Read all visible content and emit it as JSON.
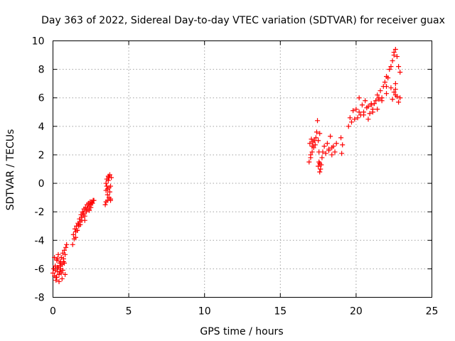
{
  "chart_data": {
    "type": "scatter",
    "title": "Day 363 of 2022, Sidereal Day-to-day VTEC variation (SDTVAR) for receiver guax",
    "xlabel": "GPS time / hours",
    "ylabel": "SDTVAR / TECUs",
    "xlim": [
      0,
      25
    ],
    "ylim": [
      -8,
      10
    ],
    "xticks": [
      "0",
      "5",
      "10",
      "15",
      "20",
      "25"
    ],
    "yticks": [
      "-8",
      "-6",
      "-4",
      "-2",
      "0",
      "2",
      "4",
      "6",
      "8",
      "10"
    ],
    "grid": true,
    "marker": "+",
    "color": "#ff0000",
    "series": [
      {
        "name": "guax",
        "x": [
          0.0,
          0.05,
          0.1,
          0.15,
          0.2,
          0.25,
          0.3,
          0.35,
          0.4,
          0.45,
          0.5,
          0.55,
          0.6,
          0.65,
          0.7,
          0.75,
          0.8,
          0.85,
          0.9,
          0.1,
          0.2,
          0.3,
          0.4,
          0.5,
          0.6,
          0.7,
          0.8,
          0.15,
          0.35,
          0.55,
          0.75,
          0.25,
          0.45,
          0.65,
          0.3,
          0.5,
          1.3,
          1.35,
          1.4,
          1.45,
          1.5,
          1.55,
          1.6,
          1.65,
          1.7,
          1.75,
          1.8,
          1.85,
          1.9,
          1.95,
          2.0,
          2.05,
          2.1,
          2.15,
          2.2,
          2.25,
          2.3,
          2.35,
          2.4,
          2.45,
          2.5,
          2.55,
          2.6,
          2.65,
          2.7,
          1.5,
          1.6,
          1.7,
          1.8,
          1.9,
          2.0,
          2.1,
          2.2,
          2.3,
          2.4,
          2.5,
          3.45,
          3.5,
          3.55,
          3.6,
          3.65,
          3.7,
          3.75,
          3.8,
          3.85,
          3.5,
          3.6,
          3.7,
          3.8,
          3.55,
          3.65,
          3.75,
          3.5,
          3.6,
          3.7,
          3.8,
          16.9,
          16.95,
          17.0,
          17.05,
          17.1,
          17.15,
          17.2,
          17.25,
          17.3,
          17.35,
          17.4,
          17.45,
          17.5,
          17.55,
          17.6,
          17.65,
          17.7,
          17.75,
          17.8,
          17.9,
          18.0,
          18.1,
          18.2,
          18.3,
          18.4,
          18.5,
          18.6,
          18.7,
          19.0,
          19.05,
          19.1,
          17.5,
          17.55,
          17.6,
          17.6,
          17.0,
          17.1,
          18.2,
          18.4,
          19.5,
          19.6,
          19.7,
          19.8,
          19.9,
          20.0,
          20.1,
          20.2,
          20.3,
          20.4,
          20.5,
          20.6,
          20.7,
          20.8,
          20.9,
          21.0,
          21.1,
          21.2,
          21.3,
          21.4,
          21.5,
          21.6,
          21.7,
          21.8,
          21.9,
          22.0,
          22.1,
          22.2,
          22.3,
          22.4,
          22.5,
          22.6,
          22.7,
          22.8,
          22.9,
          20.2,
          20.5,
          20.8,
          21.1,
          21.4,
          21.7,
          22.0,
          22.3,
          22.6,
          22.9,
          21.0,
          21.5,
          22.0,
          22.4,
          22.5,
          22.6,
          22.7,
          22.8,
          22.5,
          22.6
        ],
        "y": [
          -6.3,
          -6.0,
          -6.5,
          -5.8,
          -6.6,
          -5.4,
          -6.2,
          -5.0,
          -6.4,
          -5.6,
          -6.0,
          -5.2,
          -5.7,
          -4.9,
          -5.5,
          -4.7,
          -5.0,
          -4.5,
          -4.3,
          -5.2,
          -6.8,
          -5.9,
          -6.9,
          -5.5,
          -6.7,
          -5.3,
          -6.4,
          -6.1,
          -5.9,
          -6.3,
          -5.6,
          -6.6,
          -6.2,
          -6.1,
          -5.3,
          -5.8,
          -4.3,
          -3.6,
          -3.9,
          -3.2,
          -3.4,
          -3.0,
          -3.3,
          -2.8,
          -2.9,
          -2.5,
          -2.7,
          -2.2,
          -2.4,
          -2.0,
          -2.1,
          -1.8,
          -2.3,
          -1.7,
          -1.9,
          -1.5,
          -1.8,
          -1.4,
          -1.6,
          -1.3,
          -1.5,
          -1.3,
          -1.4,
          -1.2,
          -1.2,
          -3.8,
          -3.3,
          -3.0,
          -2.9,
          -2.6,
          -2.2,
          -2.6,
          -2.0,
          -1.8,
          -1.9,
          -1.7,
          -1.5,
          -0.5,
          0.3,
          -1.2,
          0.5,
          -0.3,
          0.6,
          -1.1,
          0.4,
          -1.3,
          -0.8,
          -1.0,
          -1.2,
          -0.2,
          0.2,
          -0.6,
          0.0,
          -0.4,
          0.4,
          -0.2,
          1.5,
          2.8,
          1.8,
          3.1,
          2.2,
          2.9,
          2.5,
          3.0,
          2.7,
          3.2,
          3.6,
          4.4,
          3.0,
          1.5,
          0.8,
          1.0,
          1.3,
          1.8,
          2.2,
          2.6,
          2.1,
          2.8,
          2.4,
          3.3,
          2.0,
          2.6,
          2.2,
          2.8,
          3.2,
          2.1,
          2.7,
          1.2,
          2.2,
          3.5,
          1.4,
          2.0,
          2.6,
          2.3,
          2.5,
          4.0,
          4.6,
          4.3,
          5.1,
          4.5,
          5.2,
          4.6,
          6.0,
          4.8,
          5.5,
          5.0,
          5.8,
          5.3,
          5.4,
          4.9,
          5.5,
          5.2,
          5.6,
          5.8,
          6.2,
          5.9,
          6.5,
          6.0,
          6.8,
          7.1,
          7.5,
          7.4,
          8.0,
          8.2,
          8.6,
          9.2,
          9.4,
          8.9,
          8.2,
          7.8,
          5.0,
          4.8,
          4.5,
          5.0,
          5.2,
          5.8,
          6.3,
          6.7,
          6.2,
          6.0,
          5.6,
          6.0,
          6.8,
          5.9,
          6.4,
          6.6,
          6.1,
          5.7,
          9.0,
          7.0
        ]
      }
    ]
  }
}
